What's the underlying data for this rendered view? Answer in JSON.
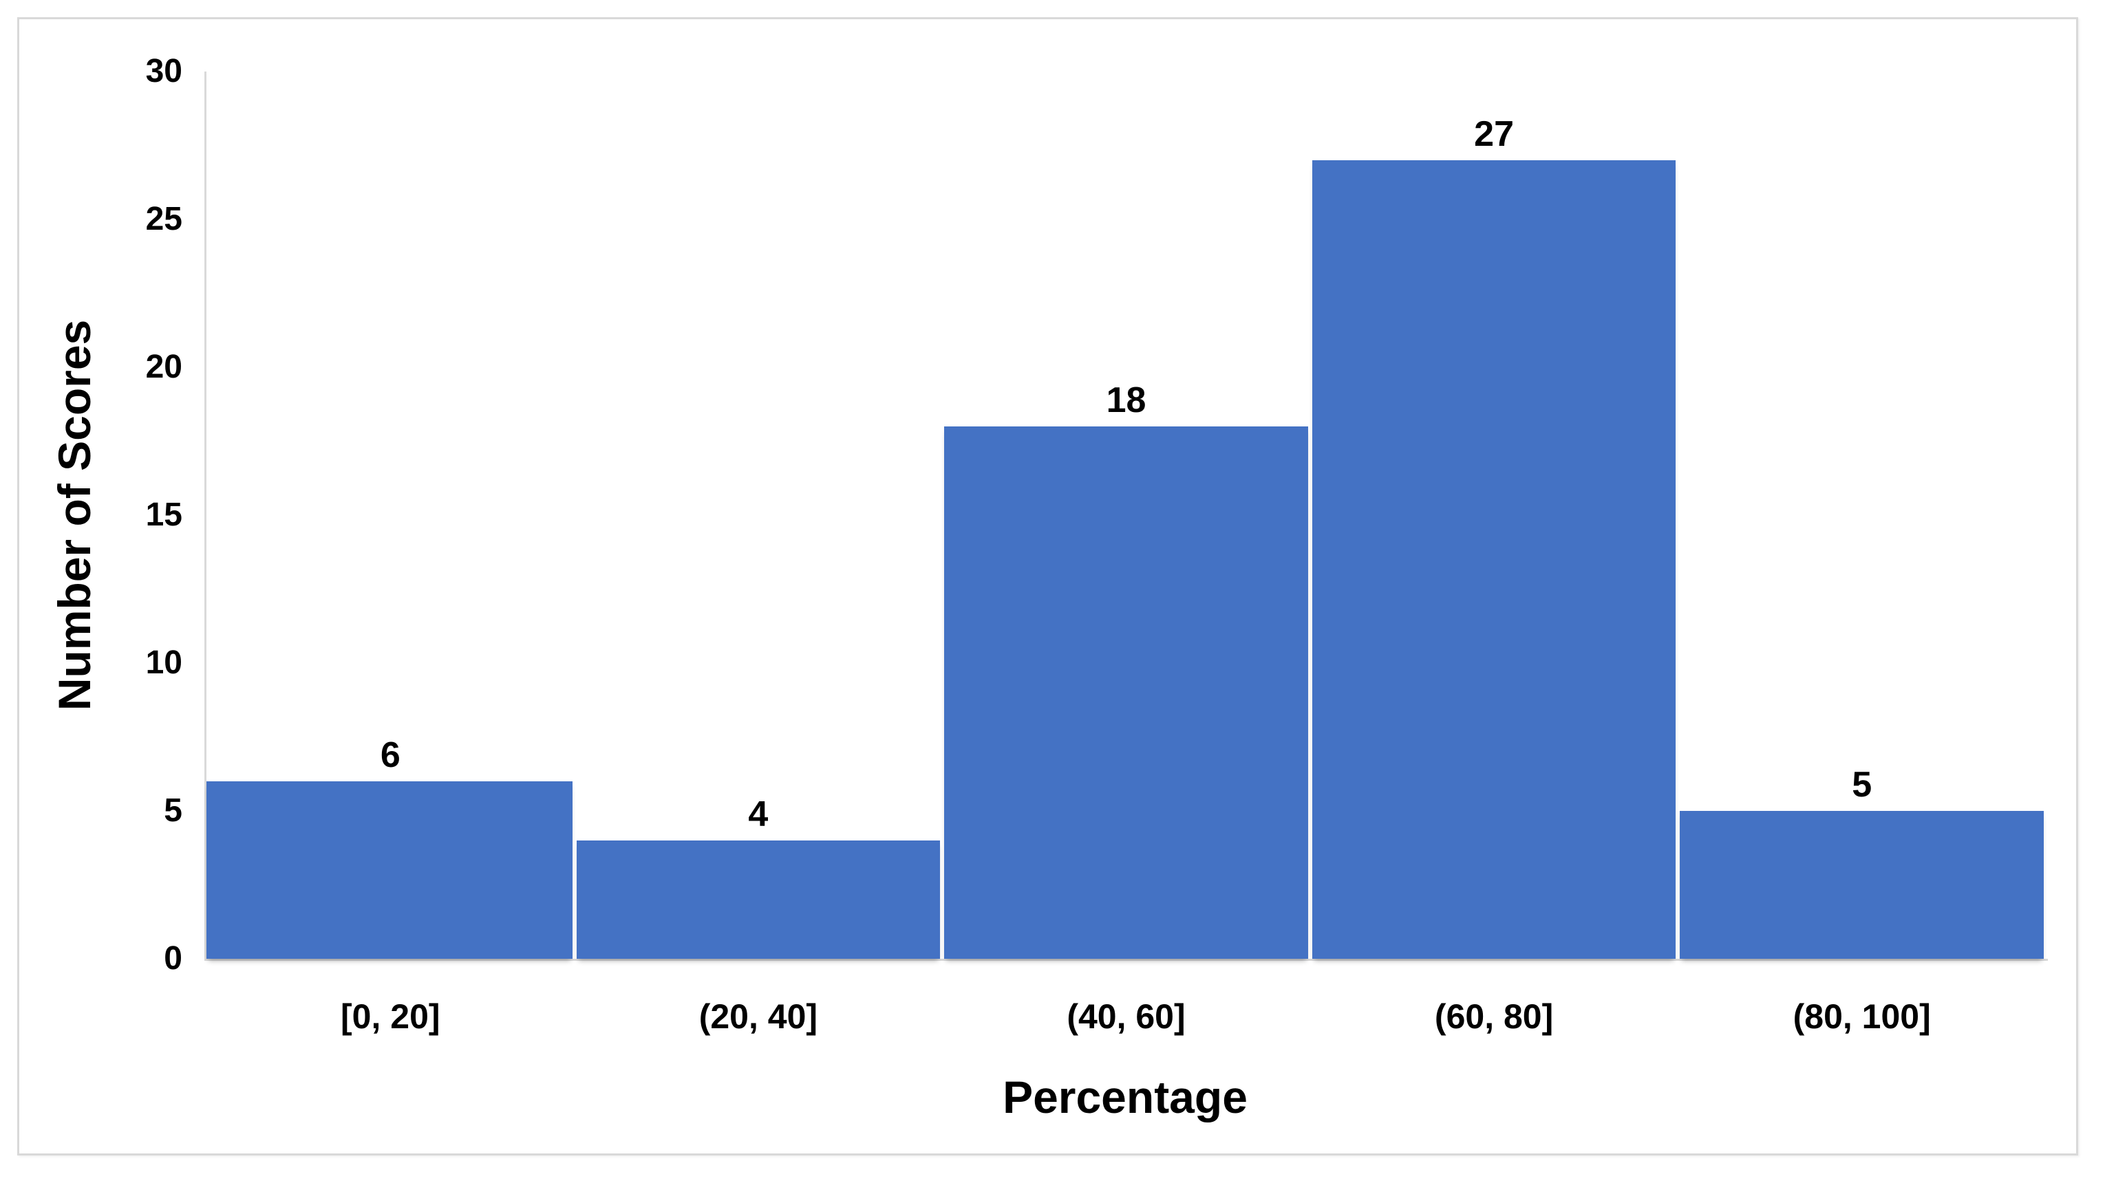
{
  "chart_data": {
    "type": "bar",
    "title": "",
    "categories": [
      "[0, 20]",
      "(20, 40]",
      "(40, 60]",
      "(60, 80]",
      "(80, 100]"
    ],
    "values": [
      6,
      4,
      18,
      27,
      5
    ],
    "data_labels": [
      "6",
      "4",
      "18",
      "27",
      "5"
    ],
    "xlabel": "Percentage",
    "ylabel": "Number of Scores",
    "ylim": [
      0,
      30
    ],
    "yticks": [
      0,
      5,
      10,
      15,
      20,
      25,
      30
    ],
    "bar_color": "#4472C4",
    "axis_line_color": "#D9D9D9",
    "frame_border_color": "#D9D9D9",
    "text_color": "#000000",
    "grid": "off",
    "legend": "none"
  }
}
